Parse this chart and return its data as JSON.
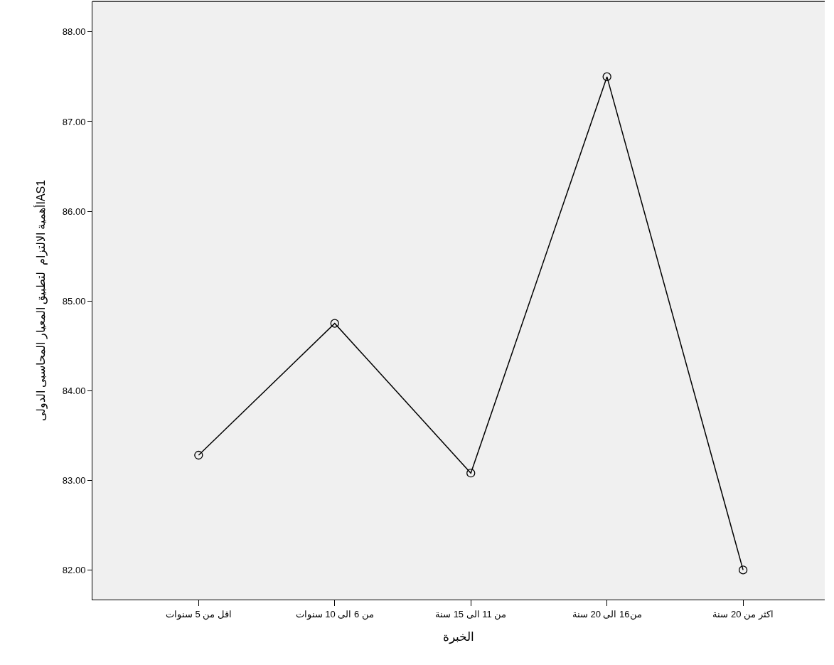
{
  "chart_data": {
    "type": "line",
    "xlabel": "الخبرة",
    "ylabel": "أهمية الالتزام  لتطبيق المعيار المحاسبى الدولىIAS1",
    "categories": [
      "اقل من 5 سنوات",
      "من 6 الى 10 سنوات",
      "من 11 الى 15 سنة",
      "من16 الى 20 سنة",
      "اكثر من 20 سنة"
    ],
    "series": [
      {
        "color": "#000000",
        "values": [
          83.28,
          84.75,
          83.08,
          87.5,
          82.0
        ]
      }
    ],
    "ylim": [
      81.67,
      88.34
    ],
    "yticks": [
      {
        "value": 82,
        "label": "82.00"
      },
      {
        "value": 83,
        "label": "83.00"
      },
      {
        "value": 84,
        "label": "84.00"
      },
      {
        "value": 85,
        "label": "85.00"
      },
      {
        "value": 86,
        "label": "86.00"
      },
      {
        "value": 87,
        "label": "87.00"
      },
      {
        "value": 88,
        "label": "88.00"
      }
    ],
    "marker": "circle",
    "line_style": "solid",
    "grid": false,
    "legend": false
  }
}
